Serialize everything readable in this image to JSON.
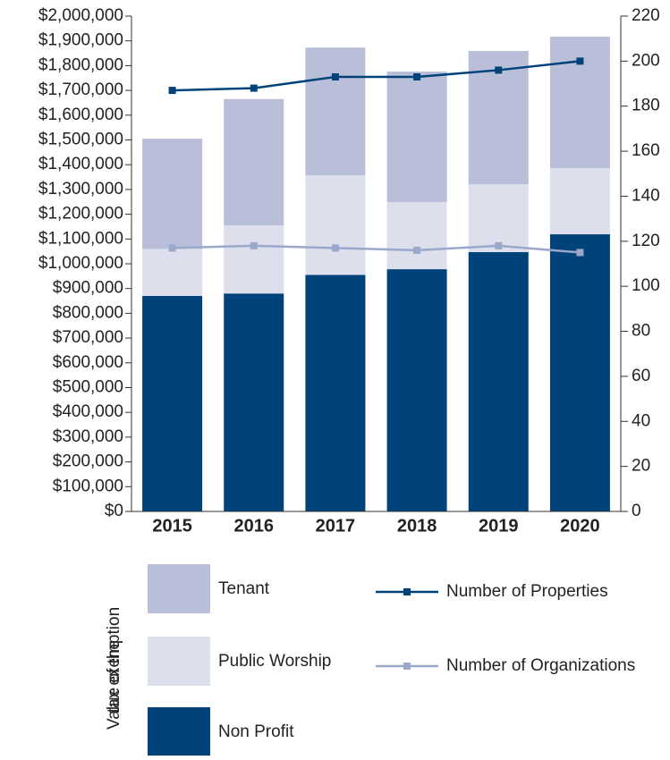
{
  "chart_data": {
    "type": "bar",
    "categories": [
      "2015",
      "2016",
      "2017",
      "2018",
      "2019",
      "2020"
    ],
    "series": [
      {
        "name": "Non Profit",
        "color": "#00427a",
        "values": [
          870000,
          880000,
          955000,
          978000,
          1047000,
          1119000
        ]
      },
      {
        "name": "Public Worship",
        "color": "#dde0ec",
        "values": [
          190000,
          275000,
          402000,
          271000,
          274000,
          267000
        ]
      },
      {
        "name": "Tenant",
        "color": "#b9bfd8",
        "values": [
          445000,
          510000,
          516000,
          527000,
          538000,
          531000
        ]
      },
      {
        "name": "Number of Properties",
        "type": "line",
        "axis": "y2",
        "color": "#00427a",
        "values": [
          187,
          188,
          193,
          193,
          196,
          200
        ]
      },
      {
        "name": "Number of Organizations",
        "type": "line",
        "axis": "y2",
        "color": "#9aa8cc",
        "values": [
          117,
          118,
          117,
          116,
          118,
          115
        ]
      }
    ],
    "legend_title": [
      "Value of the",
      "tax exemption"
    ],
    "ylim": [
      0,
      2000000
    ],
    "yticks": [
      {
        "value": 0,
        "label": "$0"
      },
      {
        "value": 100000,
        "label": "$100,000"
      },
      {
        "value": 200000,
        "label": "$200,000"
      },
      {
        "value": 300000,
        "label": "$300,000"
      },
      {
        "value": 400000,
        "label": "$400,000"
      },
      {
        "value": 500000,
        "label": "$500,000"
      },
      {
        "value": 600000,
        "label": "$600,000"
      },
      {
        "value": 700000,
        "label": "$700,000"
      },
      {
        "value": 800000,
        "label": "$800,000"
      },
      {
        "value": 900000,
        "label": "$900,000"
      },
      {
        "value": 1000000,
        "label": "$1,000,000"
      },
      {
        "value": 1100000,
        "label": "$1,100,000"
      },
      {
        "value": 1200000,
        "label": "$1,200,000"
      },
      {
        "value": 1300000,
        "label": "$1,300,000"
      },
      {
        "value": 1400000,
        "label": "$1,400,000"
      },
      {
        "value": 1500000,
        "label": "$1,500,000"
      },
      {
        "value": 1600000,
        "label": "$1,600,000"
      },
      {
        "value": 1700000,
        "label": "$1,700,000"
      },
      {
        "value": 1800000,
        "label": "$1,800,000"
      },
      {
        "value": 1900000,
        "label": "$1,900,000"
      },
      {
        "value": 2000000,
        "label": "$2,000,000"
      }
    ],
    "y2lim": [
      0,
      220
    ],
    "y2ticks": [
      0,
      20,
      40,
      60,
      80,
      100,
      120,
      140,
      160,
      180,
      200,
      220
    ]
  }
}
